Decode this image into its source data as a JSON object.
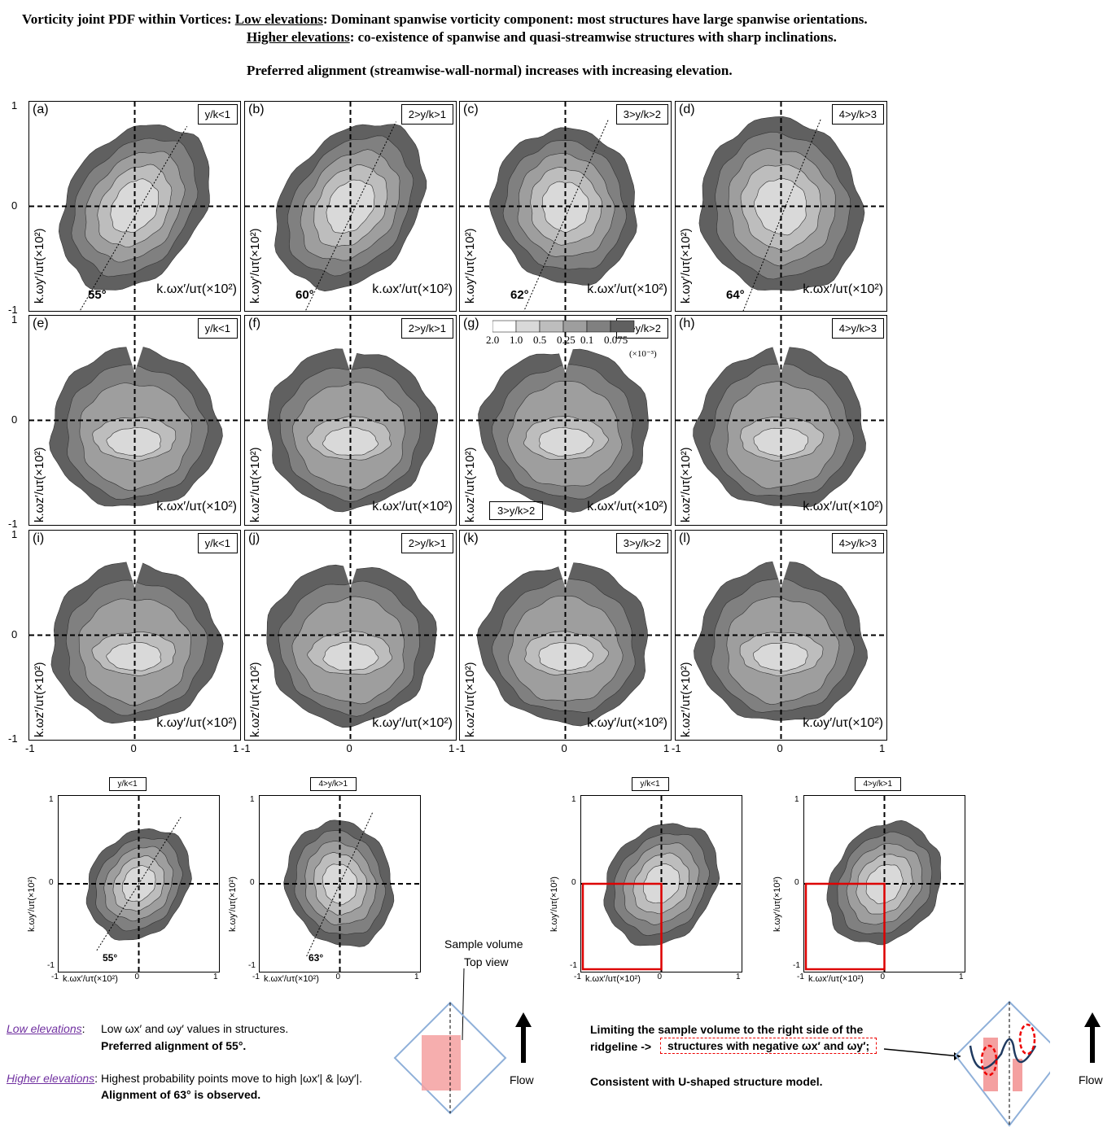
{
  "header": {
    "line1_prefix": "Vorticity joint PDF within Vortices:",
    "line1_u": "Low elevations",
    "line1_rest": ": Dominant spanwise vorticity component: most structures have large spanwise orientations.",
    "line2_u": "Higher elevations",
    "line2_rest": ": co-existence of spanwise and quasi-streamwise structures with sharp inclinations.",
    "line3": "Preferred alignment (streamwise-wall-normal) increases with increasing elevation."
  },
  "grid": {
    "panels": [
      {
        "label": "(a)",
        "tag": "y/k<1",
        "angle": "55°"
      },
      {
        "label": "(b)",
        "tag": "2>y/k>1",
        "angle": "60°"
      },
      {
        "label": "(c)",
        "tag": "3>y/k>2",
        "angle": "62°"
      },
      {
        "label": "(d)",
        "tag": "4>y/k>3",
        "angle": "64°"
      },
      {
        "label": "(e)",
        "tag": "y/k<1"
      },
      {
        "label": "(f)",
        "tag": "2>y/k>1"
      },
      {
        "label": "(g)",
        "tag": "3>y/k>2"
      },
      {
        "label": "(h)",
        "tag": "4>y/k>3"
      },
      {
        "label": "(i)",
        "tag": "y/k<1"
      },
      {
        "label": "(j)",
        "tag": "2>y/k>1"
      },
      {
        "label": "(k)",
        "tag": "3>y/k>2"
      },
      {
        "label": "(l)",
        "tag": "4>y/k>3"
      }
    ],
    "xlabel_row1": "k.ωx′/uτ(×10²)",
    "xlabel_row2": "k.ωx′/uτ(×10²)",
    "xlabel_row3": "k.ωy′/uτ(×10²)",
    "ylabel_row1": "k.ωy′/uτ(×10²)",
    "ylabel_row2": "k.ωz′/uτ(×10²)",
    "ylabel_row3": "k.ωz′/uτ(×10²)",
    "yticks": [
      "1",
      "0",
      "-1"
    ],
    "xticks_row": [
      "-1",
      "0",
      "1"
    ],
    "colorbar": {
      "levels": [
        "2.0",
        "1.0",
        "0.5",
        "0.25",
        "0.1",
        "0.075"
      ],
      "unit": "(×10⁻³)",
      "colors": [
        "#ffffff",
        "#d9d9d9",
        "#bdbdbd",
        "#9e9e9e",
        "#808080",
        "#606060"
      ]
    }
  },
  "small": {
    "panels": [
      {
        "tag": "y/k<1",
        "angle": "55°"
      },
      {
        "tag": "4>y/k>1",
        "angle": "63°"
      },
      {
        "tag": "y/k<1"
      },
      {
        "tag": "4>y/k>1"
      }
    ],
    "xlabel": "k.ωx′/uτ(×10²)",
    "ylabel": "k.ωy′/uτ(×10²)",
    "ticks": [
      "1",
      "0",
      "-1"
    ]
  },
  "notes": {
    "sample_volume": "Sample volume",
    "top_view": "Top view",
    "flow": "Flow",
    "low_label": "Low elevations",
    "low_text1": "Low ωx′ and ωy′ values in structures.",
    "low_text2": "Preferred alignment of 55°.",
    "high_label": "Higher elevations",
    "high_text1": "Highest probability points move to high |ωx′| & |ωy′|.",
    "high_text2": "Alignment of 63° is observed.",
    "right_text1": "Limiting the sample volume to the right side of the",
    "right_text2": "ridgeline ->",
    "right_box": "structures with negative ωx′ and ωy′;",
    "right_text3": "Consistent with U-shaped structure model."
  }
}
